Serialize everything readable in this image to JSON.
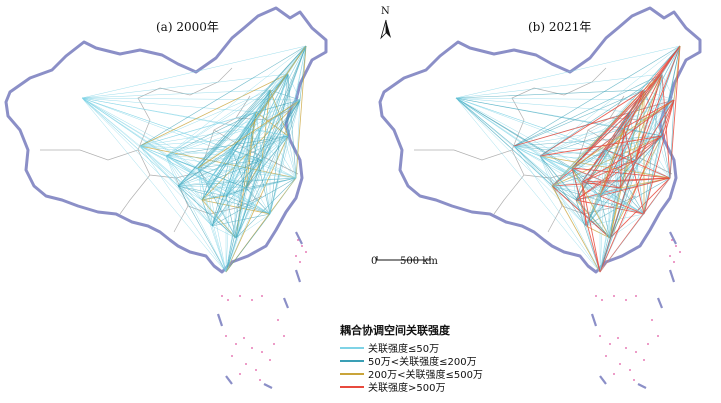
{
  "panels": [
    {
      "title": "(a) 2000年"
    },
    {
      "title": "(b) 2021年"
    }
  ],
  "north_arrow": {
    "label": "N"
  },
  "scale_bar": {
    "zero_label": "0",
    "length_label": "500 km"
  },
  "legend": {
    "title": "耦合协调空间关联强度",
    "items": [
      {
        "label": "关联强度≤50万",
        "color": "#7fd3e6"
      },
      {
        "label": "50万<关联强度≤200万",
        "color": "#3a9fb5"
      },
      {
        "label": "200万<关联强度≤500万",
        "color": "#c9a43a"
      },
      {
        "label": "关联强度>500万",
        "color": "#e84a3d"
      }
    ]
  },
  "colors": {
    "coastline": "#8b8fc7",
    "province_border": "#b0b0b0",
    "island_dots": "#e055a0"
  }
}
